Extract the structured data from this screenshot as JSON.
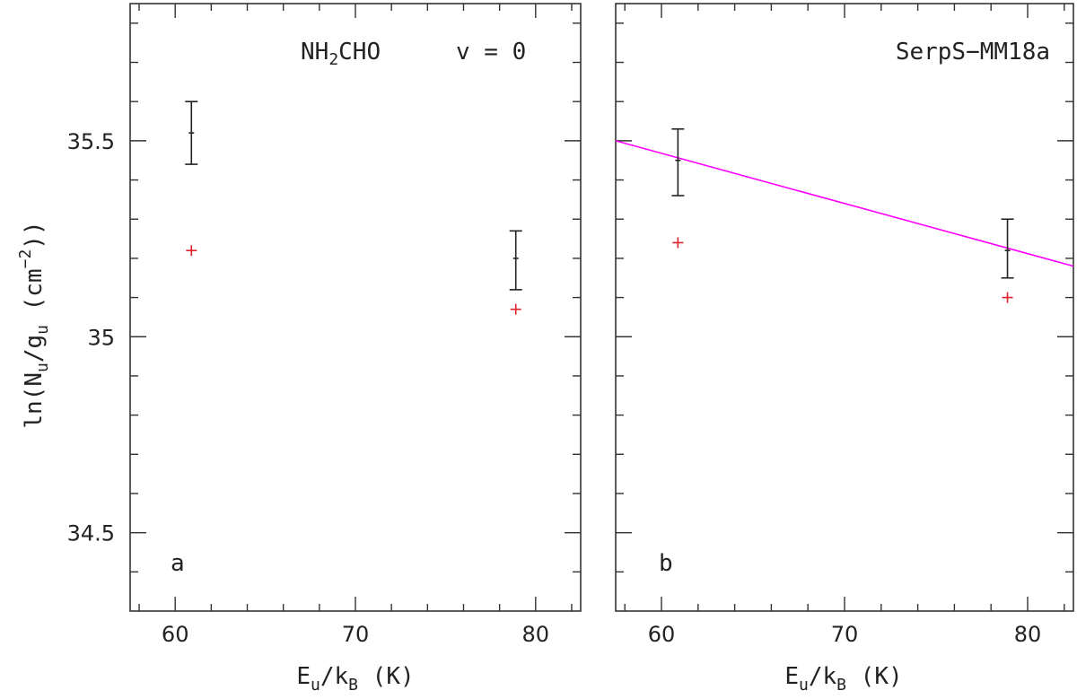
{
  "chart_data": {
    "type": "scatter",
    "ylabel": "ln(N_u/g_u (cm^-2))",
    "xlabel": "E_u/k_B (K)",
    "xlim": [
      57.5,
      82.5
    ],
    "ylim": [
      34.3,
      35.85
    ],
    "x_ticks": [
      60,
      70,
      80
    ],
    "y_ticks": [
      34.5,
      35,
      35.5
    ],
    "panels": [
      {
        "panel_label": "a",
        "title": "NH2CHO     v = 0",
        "observed": [
          {
            "x": 60.9,
            "y": 35.52,
            "err_low": 35.44,
            "err_high": 35.6
          },
          {
            "x": 78.9,
            "y": 35.2,
            "err_low": 35.12,
            "err_high": 35.27
          }
        ],
        "model": [
          {
            "x": 60.9,
            "y": 35.22
          },
          {
            "x": 78.9,
            "y": 35.07
          }
        ]
      },
      {
        "panel_label": "b",
        "title": "SerpS-MM18a",
        "observed": [
          {
            "x": 60.9,
            "y": 35.45,
            "err_low": 35.36,
            "err_high": 35.53
          },
          {
            "x": 78.9,
            "y": 35.22,
            "err_low": 35.15,
            "err_high": 35.3
          }
        ],
        "model": [
          {
            "x": 60.9,
            "y": 35.24
          },
          {
            "x": 78.9,
            "y": 35.1
          }
        ],
        "fit_line": {
          "x": [
            57.5,
            82.5
          ],
          "y": [
            35.5,
            35.18
          ],
          "color": "#ff00ff"
        }
      }
    ],
    "colors": {
      "observed": "#222222",
      "model": "#e0202a",
      "fit": "#ff00ff"
    }
  },
  "labels": {
    "ylabel_main": "ln(N",
    "ylabel_sub_u1": "u",
    "ylabel_mid": "/g",
    "ylabel_sub_u2": "u",
    "ylabel_unit": " (cm",
    "ylabel_exp": "−2",
    "ylabel_close": "))",
    "xlabel_main": "E",
    "xlabel_sub_u": "u",
    "xlabel_slash": "/k",
    "xlabel_sub_b": "B",
    "xlabel_unit": " (K)",
    "title_a_nh": "NH",
    "title_a_sub": "2",
    "title_a_cho": "CHO",
    "title_a_v": "v = 0",
    "title_b": "SerpS−MM18a",
    "panel_a": "a",
    "panel_b": "b"
  }
}
